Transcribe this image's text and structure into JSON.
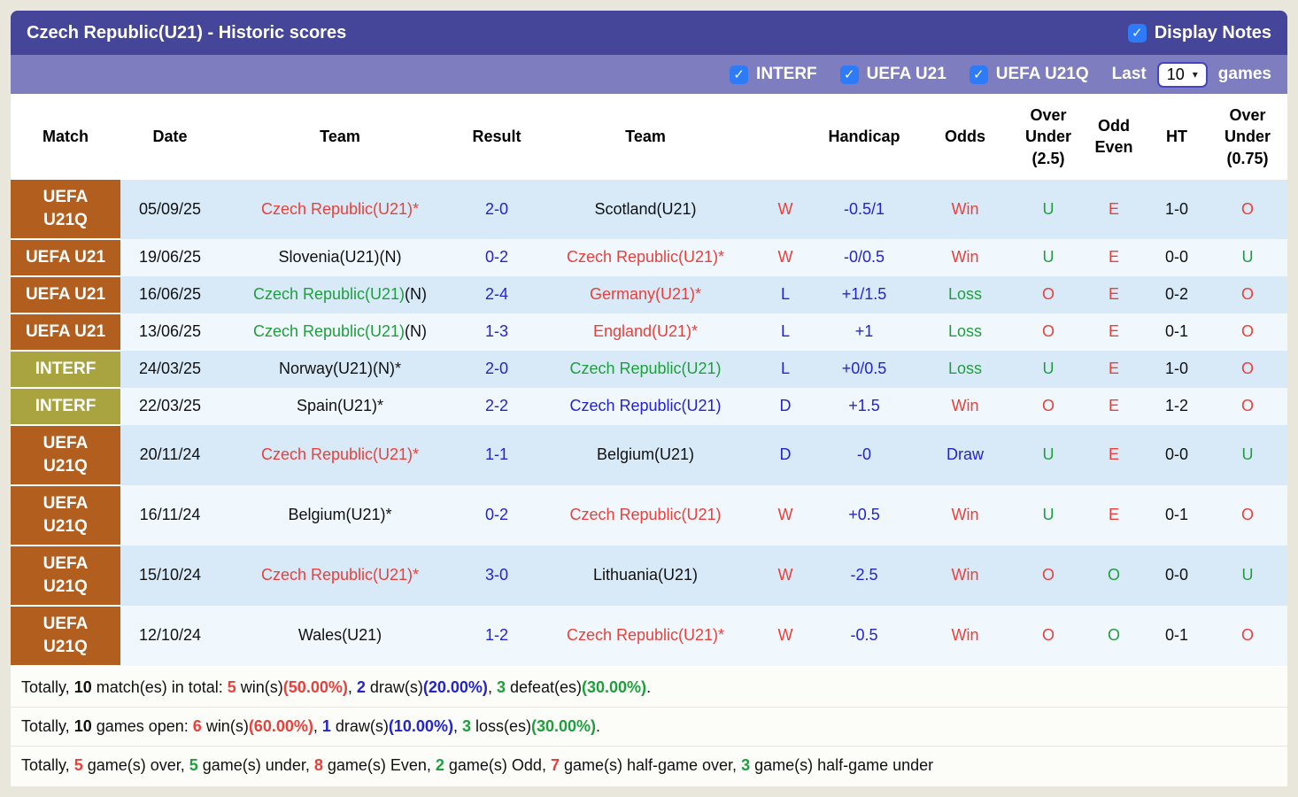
{
  "colors": {
    "red": "#e8413c",
    "green": "#1f9e3d",
    "blue": "#2424cd",
    "black": "#111111",
    "uefa_bg": "#b25e1f",
    "interf_bg": "#a9a440",
    "titlebar_bg": "#45459a",
    "filterbar_bg": "#7d7dbf",
    "checkbox_bg": "#2d7bf6",
    "row_odd_bg": "#d8eaf8",
    "row_even_bg": "#f0f7fd",
    "page_bg": "#e9e6dc",
    "summary_bg": "#fcfcf9"
  },
  "icons": {
    "check": "✓",
    "chevron_down": "▾"
  },
  "header": {
    "title": "Czech Republic(U21) - Historic scores",
    "display_notes": {
      "label": "Display Notes",
      "checked": true
    }
  },
  "filter_bar": {
    "competitions": [
      {
        "label": "INTERF",
        "checked": true
      },
      {
        "label": "UEFA U21",
        "checked": true
      },
      {
        "label": "UEFA U21Q",
        "checked": true
      }
    ],
    "last_label": "Last",
    "games_count": "10",
    "games_label": "games"
  },
  "table": {
    "headers": [
      "Match",
      "Date",
      "Team",
      "Result",
      "Team",
      "",
      "Handicap",
      "Odds",
      "Over Under (2.5)",
      "Odd Even",
      "HT",
      "Over Under (0.75)"
    ],
    "rows": [
      {
        "match": {
          "lines": [
            "UEFA",
            "U21Q"
          ],
          "type": "uefa"
        },
        "date": {
          "text": "05/09/25",
          "color": "black"
        },
        "team1": [
          {
            "text": "Czech Republic(U21)*",
            "color": "red"
          }
        ],
        "result": {
          "text": "2-0",
          "color": "blue"
        },
        "team2": [
          {
            "text": "Scotland(U21)",
            "color": "black"
          }
        ],
        "wdl": {
          "text": "W",
          "color": "red"
        },
        "handicap": {
          "text": "-0.5/1",
          "color": "blue"
        },
        "odds": {
          "text": "Win",
          "color": "red"
        },
        "over_under_25": {
          "text": "U",
          "color": "green"
        },
        "odd_even": {
          "text": "E",
          "color": "red"
        },
        "ht": {
          "text": "1-0",
          "color": "black"
        },
        "over_under_075": {
          "text": "O",
          "color": "red"
        }
      },
      {
        "match": {
          "lines": [
            "UEFA U21"
          ],
          "type": "uefa"
        },
        "date": {
          "text": "19/06/25",
          "color": "black"
        },
        "team1": [
          {
            "text": "Slovenia(U21)(N)",
            "color": "black"
          }
        ],
        "result": {
          "text": "0-2",
          "color": "blue"
        },
        "team2": [
          {
            "text": "Czech Republic(U21)*",
            "color": "red"
          }
        ],
        "wdl": {
          "text": "W",
          "color": "red"
        },
        "handicap": {
          "text": "-0/0.5",
          "color": "blue"
        },
        "odds": {
          "text": "Win",
          "color": "red"
        },
        "over_under_25": {
          "text": "U",
          "color": "green"
        },
        "odd_even": {
          "text": "E",
          "color": "red"
        },
        "ht": {
          "text": "0-0",
          "color": "black"
        },
        "over_under_075": {
          "text": "U",
          "color": "green"
        }
      },
      {
        "match": {
          "lines": [
            "UEFA U21"
          ],
          "type": "uefa"
        },
        "date": {
          "text": "16/06/25",
          "color": "black"
        },
        "team1": [
          {
            "text": "Czech Republic(U21)",
            "color": "green"
          },
          {
            "text": "(N)",
            "color": "black"
          }
        ],
        "result": {
          "text": "2-4",
          "color": "blue"
        },
        "team2": [
          {
            "text": "Germany(U21)*",
            "color": "red"
          }
        ],
        "wdl": {
          "text": "L",
          "color": "blue"
        },
        "handicap": {
          "text": "+1/1.5",
          "color": "blue"
        },
        "odds": {
          "text": "Loss",
          "color": "green"
        },
        "over_under_25": {
          "text": "O",
          "color": "red"
        },
        "odd_even": {
          "text": "E",
          "color": "red"
        },
        "ht": {
          "text": "0-2",
          "color": "black"
        },
        "over_under_075": {
          "text": "O",
          "color": "red"
        }
      },
      {
        "match": {
          "lines": [
            "UEFA U21"
          ],
          "type": "uefa"
        },
        "date": {
          "text": "13/06/25",
          "color": "black"
        },
        "team1": [
          {
            "text": "Czech Republic(U21)",
            "color": "green"
          },
          {
            "text": "(N)",
            "color": "black"
          }
        ],
        "result": {
          "text": "1-3",
          "color": "blue"
        },
        "team2": [
          {
            "text": "England(U21)*",
            "color": "red"
          }
        ],
        "wdl": {
          "text": "L",
          "color": "blue"
        },
        "handicap": {
          "text": "+1",
          "color": "blue"
        },
        "odds": {
          "text": "Loss",
          "color": "green"
        },
        "over_under_25": {
          "text": "O",
          "color": "red"
        },
        "odd_even": {
          "text": "E",
          "color": "red"
        },
        "ht": {
          "text": "0-1",
          "color": "black"
        },
        "over_under_075": {
          "text": "O",
          "color": "red"
        }
      },
      {
        "match": {
          "lines": [
            "INTERF"
          ],
          "type": "interf"
        },
        "date": {
          "text": "24/03/25",
          "color": "black"
        },
        "team1": [
          {
            "text": "Norway(U21)(N)*",
            "color": "black"
          }
        ],
        "result": {
          "text": "2-0",
          "color": "blue"
        },
        "team2": [
          {
            "text": "Czech Republic(U21)",
            "color": "green"
          }
        ],
        "wdl": {
          "text": "L",
          "color": "blue"
        },
        "handicap": {
          "text": "+0/0.5",
          "color": "blue"
        },
        "odds": {
          "text": "Loss",
          "color": "green"
        },
        "over_under_25": {
          "text": "U",
          "color": "green"
        },
        "odd_even": {
          "text": "E",
          "color": "red"
        },
        "ht": {
          "text": "1-0",
          "color": "black"
        },
        "over_under_075": {
          "text": "O",
          "color": "red"
        }
      },
      {
        "match": {
          "lines": [
            "INTERF"
          ],
          "type": "interf"
        },
        "date": {
          "text": "22/03/25",
          "color": "black"
        },
        "team1": [
          {
            "text": "Spain(U21)*",
            "color": "black"
          }
        ],
        "result": {
          "text": "2-2",
          "color": "blue"
        },
        "team2": [
          {
            "text": "Czech Republic(U21)",
            "color": "blue"
          }
        ],
        "wdl": {
          "text": "D",
          "color": "blue"
        },
        "handicap": {
          "text": "+1.5",
          "color": "blue"
        },
        "odds": {
          "text": "Win",
          "color": "red"
        },
        "over_under_25": {
          "text": "O",
          "color": "red"
        },
        "odd_even": {
          "text": "E",
          "color": "red"
        },
        "ht": {
          "text": "1-2",
          "color": "black"
        },
        "over_under_075": {
          "text": "O",
          "color": "red"
        }
      },
      {
        "match": {
          "lines": [
            "UEFA",
            "U21Q"
          ],
          "type": "uefa"
        },
        "date": {
          "text": "20/11/24",
          "color": "black"
        },
        "team1": [
          {
            "text": "Czech Republic(U21)*",
            "color": "red"
          }
        ],
        "result": {
          "text": "1-1",
          "color": "blue"
        },
        "team2": [
          {
            "text": "Belgium(U21)",
            "color": "black"
          }
        ],
        "wdl": {
          "text": "D",
          "color": "blue"
        },
        "handicap": {
          "text": "-0",
          "color": "blue"
        },
        "odds": {
          "text": "Draw",
          "color": "blue"
        },
        "over_under_25": {
          "text": "U",
          "color": "green"
        },
        "odd_even": {
          "text": "E",
          "color": "red"
        },
        "ht": {
          "text": "0-0",
          "color": "black"
        },
        "over_under_075": {
          "text": "U",
          "color": "green"
        }
      },
      {
        "match": {
          "lines": [
            "UEFA",
            "U21Q"
          ],
          "type": "uefa"
        },
        "date": {
          "text": "16/11/24",
          "color": "black"
        },
        "team1": [
          {
            "text": "Belgium(U21)*",
            "color": "black"
          }
        ],
        "result": {
          "text": "0-2",
          "color": "blue"
        },
        "team2": [
          {
            "text": "Czech Republic(U21)",
            "color": "red"
          }
        ],
        "wdl": {
          "text": "W",
          "color": "red"
        },
        "handicap": {
          "text": "+0.5",
          "color": "blue"
        },
        "odds": {
          "text": "Win",
          "color": "red"
        },
        "over_under_25": {
          "text": "U",
          "color": "green"
        },
        "odd_even": {
          "text": "E",
          "color": "red"
        },
        "ht": {
          "text": "0-1",
          "color": "black"
        },
        "over_under_075": {
          "text": "O",
          "color": "red"
        }
      },
      {
        "match": {
          "lines": [
            "UEFA",
            "U21Q"
          ],
          "type": "uefa"
        },
        "date": {
          "text": "15/10/24",
          "color": "black"
        },
        "team1": [
          {
            "text": "Czech Republic(U21)*",
            "color": "red"
          }
        ],
        "result": {
          "text": "3-0",
          "color": "blue"
        },
        "team2": [
          {
            "text": "Lithuania(U21)",
            "color": "black"
          }
        ],
        "wdl": {
          "text": "W",
          "color": "red"
        },
        "handicap": {
          "text": "-2.5",
          "color": "blue"
        },
        "odds": {
          "text": "Win",
          "color": "red"
        },
        "over_under_25": {
          "text": "O",
          "color": "red"
        },
        "odd_even": {
          "text": "O",
          "color": "green"
        },
        "ht": {
          "text": "0-0",
          "color": "black"
        },
        "over_under_075": {
          "text": "U",
          "color": "green"
        }
      },
      {
        "match": {
          "lines": [
            "UEFA",
            "U21Q"
          ],
          "type": "uefa"
        },
        "date": {
          "text": "12/10/24",
          "color": "black"
        },
        "team1": [
          {
            "text": "Wales(U21)",
            "color": "black"
          }
        ],
        "result": {
          "text": "1-2",
          "color": "blue"
        },
        "team2": [
          {
            "text": "Czech Republic(U21)*",
            "color": "red"
          }
        ],
        "wdl": {
          "text": "W",
          "color": "red"
        },
        "handicap": {
          "text": "-0.5",
          "color": "blue"
        },
        "odds": {
          "text": "Win",
          "color": "red"
        },
        "over_under_25": {
          "text": "O",
          "color": "red"
        },
        "odd_even": {
          "text": "O",
          "color": "green"
        },
        "ht": {
          "text": "0-1",
          "color": "black"
        },
        "over_under_075": {
          "text": "O",
          "color": "red"
        }
      }
    ]
  },
  "summary": {
    "lines": [
      [
        {
          "text": "Totally, ",
          "color": "black"
        },
        {
          "text": "10",
          "color": "black",
          "bold": true
        },
        {
          "text": " match(es) in total: ",
          "color": "black"
        },
        {
          "text": "5",
          "color": "red",
          "bold": true
        },
        {
          "text": " win(s)",
          "color": "black"
        },
        {
          "text": "(50.00%)",
          "color": "red",
          "bold": true
        },
        {
          "text": ", ",
          "color": "black"
        },
        {
          "text": "2",
          "color": "blue",
          "bold": true
        },
        {
          "text": " draw(s)",
          "color": "black"
        },
        {
          "text": "(20.00%)",
          "color": "blue",
          "bold": true
        },
        {
          "text": ", ",
          "color": "black"
        },
        {
          "text": "3",
          "color": "green",
          "bold": true
        },
        {
          "text": " defeat(es)",
          "color": "black"
        },
        {
          "text": "(30.00%)",
          "color": "green",
          "bold": true
        },
        {
          "text": ".",
          "color": "black"
        }
      ],
      [
        {
          "text": "Totally, ",
          "color": "black"
        },
        {
          "text": "10",
          "color": "black",
          "bold": true
        },
        {
          "text": " games open: ",
          "color": "black"
        },
        {
          "text": "6",
          "color": "red",
          "bold": true
        },
        {
          "text": " win(s)",
          "color": "black"
        },
        {
          "text": "(60.00%)",
          "color": "red",
          "bold": true
        },
        {
          "text": ", ",
          "color": "black"
        },
        {
          "text": "1",
          "color": "blue",
          "bold": true
        },
        {
          "text": " draw(s)",
          "color": "black"
        },
        {
          "text": "(10.00%)",
          "color": "blue",
          "bold": true
        },
        {
          "text": ", ",
          "color": "black"
        },
        {
          "text": "3",
          "color": "green",
          "bold": true
        },
        {
          "text": " loss(es)",
          "color": "black"
        },
        {
          "text": "(30.00%)",
          "color": "green",
          "bold": true
        },
        {
          "text": ".",
          "color": "black"
        }
      ],
      [
        {
          "text": "Totally, ",
          "color": "black"
        },
        {
          "text": "5",
          "color": "red",
          "bold": true
        },
        {
          "text": " game(s) over, ",
          "color": "black"
        },
        {
          "text": "5",
          "color": "green",
          "bold": true
        },
        {
          "text": " game(s) under, ",
          "color": "black"
        },
        {
          "text": "8",
          "color": "red",
          "bold": true
        },
        {
          "text": " game(s) Even, ",
          "color": "black"
        },
        {
          "text": "2",
          "color": "green",
          "bold": true
        },
        {
          "text": " game(s) Odd, ",
          "color": "black"
        },
        {
          "text": "7",
          "color": "red",
          "bold": true
        },
        {
          "text": " game(s) half-game over, ",
          "color": "black"
        },
        {
          "text": "3",
          "color": "green",
          "bold": true
        },
        {
          "text": " game(s) half-game under",
          "color": "black"
        }
      ]
    ]
  }
}
